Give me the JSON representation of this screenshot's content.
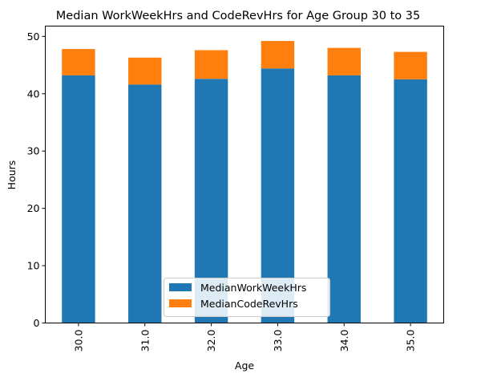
{
  "chart_data": {
    "type": "bar",
    "stacked": true,
    "title": "Median WorkWeekHrs and CodeRevHrs for Age Group 30 to 35",
    "xlabel": "Age",
    "ylabel": "Hours",
    "categories": [
      "30.0",
      "31.0",
      "32.0",
      "33.0",
      "34.0",
      "35.0"
    ],
    "series": [
      {
        "name": "MedianWorkWeekHrs",
        "color": "#1f77b4",
        "values": [
          43.2,
          41.6,
          42.6,
          44.4,
          43.2,
          42.5
        ]
      },
      {
        "name": "MedianCodeRevHrs",
        "color": "#ff7f0e",
        "values": [
          4.6,
          4.7,
          5.0,
          4.8,
          4.8,
          4.8
        ]
      }
    ],
    "ylim": [
      0,
      51.8
    ],
    "yticks": [
      "0",
      "10",
      "20",
      "30",
      "40",
      "50"
    ],
    "legend_position": "lower center",
    "grid": false
  }
}
